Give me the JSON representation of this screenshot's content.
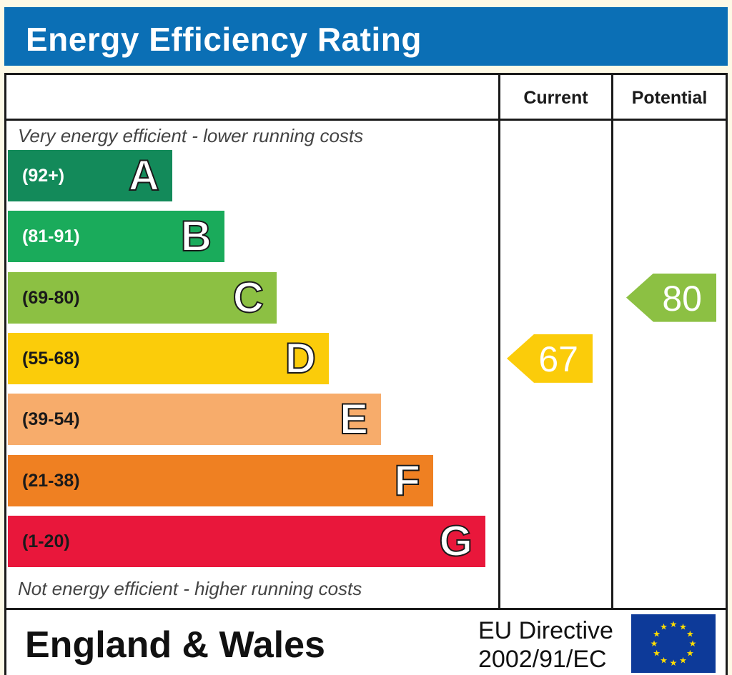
{
  "title": "Energy Efficiency Rating",
  "header": {
    "current_label": "Current",
    "potential_label": "Potential"
  },
  "top_note": "Very energy efficient - lower running costs",
  "bottom_note": "Not energy efficient - higher running costs",
  "chart_data": {
    "type": "bar",
    "categories": [
      "A",
      "B",
      "C",
      "D",
      "E",
      "F",
      "G"
    ],
    "ranges": [
      "(92+)",
      "(81-91)",
      "(69-80)",
      "(55-68)",
      "(39-54)",
      "(21-38)",
      "(1-20)"
    ],
    "band_colors": [
      "#138a5a",
      "#1aab5b",
      "#8cc043",
      "#fbcc0a",
      "#f7ac6b",
      "#ef8022",
      "#e9173b"
    ],
    "range_text_colors": [
      "#ffffff",
      "#ffffff",
      "#1a1a1a",
      "#1a1a1a",
      "#1a1a1a",
      "#1a1a1a",
      "#1a1a1a"
    ],
    "current": {
      "value": 67,
      "band": "D",
      "color": "#fbcc0a"
    },
    "potential": {
      "value": 80,
      "band": "C",
      "color": "#8cc043"
    }
  },
  "footer": {
    "country": "England & Wales",
    "directive_line1": "EU Directive",
    "directive_line2": "2002/91/EC"
  },
  "flag": {
    "icon": "eu-flag-icon",
    "background": "#0d3a99",
    "star_color": "#ffdd00"
  }
}
